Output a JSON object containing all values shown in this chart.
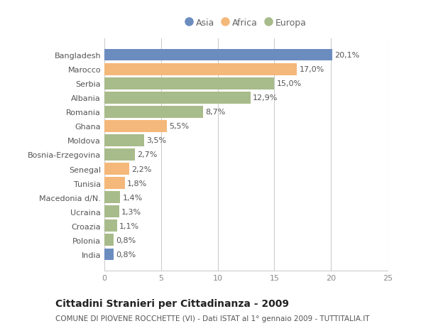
{
  "categories": [
    "Bangladesh",
    "Marocco",
    "Serbia",
    "Albania",
    "Romania",
    "Ghana",
    "Moldova",
    "Bosnia-Erzegovina",
    "Senegal",
    "Tunisia",
    "Macedonia d/N.",
    "Ucraina",
    "Croazia",
    "Polonia",
    "India"
  ],
  "values": [
    20.1,
    17.0,
    15.0,
    12.9,
    8.7,
    5.5,
    3.5,
    2.7,
    2.2,
    1.8,
    1.4,
    1.3,
    1.1,
    0.8,
    0.8
  ],
  "labels": [
    "20,1%",
    "17,0%",
    "15,0%",
    "12,9%",
    "8,7%",
    "5,5%",
    "3,5%",
    "2,7%",
    "2,2%",
    "1,8%",
    "1,4%",
    "1,3%",
    "1,1%",
    "0,8%",
    "0,8%"
  ],
  "colors": [
    "#6b8cbf",
    "#f4b87a",
    "#a8bb8a",
    "#a8bb8a",
    "#a8bb8a",
    "#f4b87a",
    "#a8bb8a",
    "#a8bb8a",
    "#f4b87a",
    "#f4b87a",
    "#a8bb8a",
    "#a8bb8a",
    "#a8bb8a",
    "#a8bb8a",
    "#6b8cbf"
  ],
  "legend": [
    {
      "label": "Asia",
      "color": "#6b8cbf"
    },
    {
      "label": "Africa",
      "color": "#f4b87a"
    },
    {
      "label": "Europa",
      "color": "#a8bb8a"
    }
  ],
  "xlim": [
    0,
    25
  ],
  "xticks": [
    0,
    5,
    10,
    15,
    20,
    25
  ],
  "title_bold": "Cittadini Stranieri per Cittadinanza - 2009",
  "subtitle": "COMUNE DI PIOVENE ROCCHETTE (VI) - Dati ISTAT al 1° gennaio 2009 - TUTTITALIA.IT",
  "bg_color": "#ffffff",
  "grid_color": "#cccccc",
  "bar_height": 0.82,
  "label_fontsize": 8,
  "tick_fontsize": 8,
  "title_fontsize": 10,
  "subtitle_fontsize": 7.5
}
